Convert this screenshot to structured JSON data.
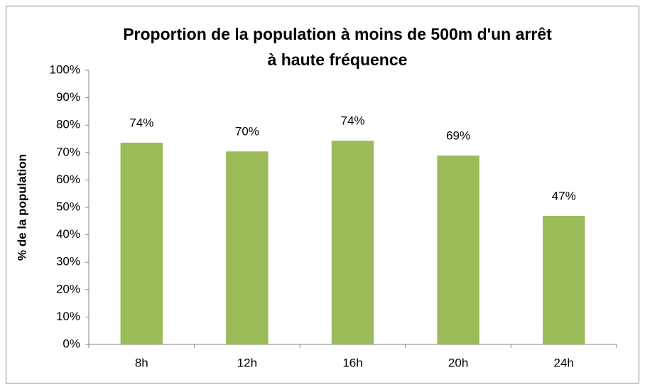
{
  "chart_data": {
    "type": "bar",
    "title": [
      "Proportion de la population à moins de 500m d'un arrêt",
      "à haute fréquence"
    ],
    "y_label": "% de la population",
    "categories": [
      "8h",
      "12h",
      "16h",
      "20h",
      "24h"
    ],
    "values": [
      73.6,
      70.4,
      74.3,
      68.9,
      46.9
    ],
    "value_labels": [
      "74%",
      "70%",
      "74%",
      "69%",
      "47%"
    ],
    "color": "#9bbb59",
    "ylim": [
      0,
      100
    ],
    "yticks": [
      {
        "value": 0,
        "label": "0%"
      },
      {
        "value": 10,
        "label": "10%"
      },
      {
        "value": 20,
        "label": "20%"
      },
      {
        "value": 30,
        "label": "30%"
      },
      {
        "value": 40,
        "label": "40%"
      },
      {
        "value": 50,
        "label": "50%"
      },
      {
        "value": 60,
        "label": "60%"
      },
      {
        "value": 70,
        "label": "70%"
      },
      {
        "value": 80,
        "label": "80%"
      },
      {
        "value": 90,
        "label": "90%"
      },
      {
        "value": 100,
        "label": "100%"
      }
    ],
    "grid": false
  }
}
